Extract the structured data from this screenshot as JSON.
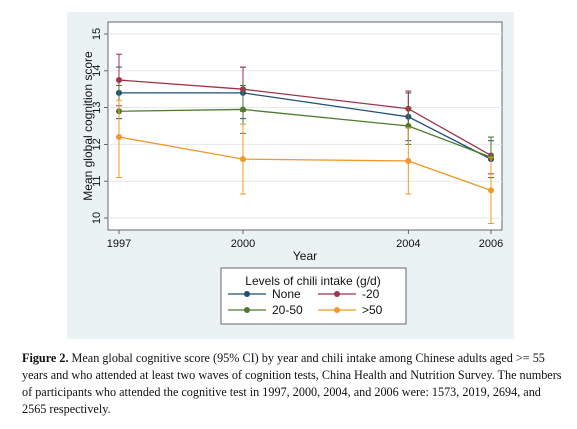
{
  "chart_data": {
    "type": "line",
    "xlabel": "Year",
    "ylabel": "Mean global cognition score",
    "x": [
      1997,
      2000,
      2004,
      2006
    ],
    "ylim": [
      10,
      15
    ],
    "yticks": [
      "10",
      "11",
      "12",
      "13",
      "14",
      "15"
    ],
    "xticks": [
      "1997",
      "2000",
      "2004",
      "2006"
    ],
    "grid": true,
    "legend": {
      "title": "Levels of chili intake (g/d)",
      "placement": "bottom"
    },
    "series": [
      {
        "name": "None",
        "color": "#1f4e79",
        "values": [
          13.4,
          13.4,
          12.75,
          11.6
        ],
        "ci_low": [
          12.7,
          12.7,
          12.1,
          11.1
        ],
        "ci_high": [
          14.1,
          14.1,
          13.4,
          12.1
        ]
      },
      {
        "name": "-20",
        "color": "#a0334a",
        "values": [
          13.75,
          13.5,
          12.97,
          11.7
        ],
        "ci_low": [
          13.05,
          12.9,
          12.5,
          11.2
        ],
        "ci_high": [
          14.45,
          14.1,
          13.45,
          12.2
        ]
      },
      {
        "name": "20-50",
        "color": "#4e7a2e",
        "values": [
          12.9,
          12.95,
          12.5,
          11.65
        ],
        "ci_low": [
          12.2,
          12.3,
          12.0,
          11.1
        ],
        "ci_high": [
          13.6,
          13.6,
          13.0,
          12.2
        ]
      },
      {
        "name": ">50",
        "color": "#f0982a",
        "values": [
          12.2,
          11.6,
          11.55,
          10.75
        ],
        "ci_low": [
          11.1,
          10.65,
          10.65,
          9.85
        ],
        "ci_high": [
          13.2,
          12.55,
          12.45,
          11.65
        ]
      }
    ]
  },
  "caption": {
    "label": "Figure 2.",
    "text": " Mean global cognitive score (95% CI) by year and chili intake among Chinese adults aged >= 55 years and who attended at least two waves of cognition tests, China Health and Nutrition Survey. The numbers of participants who attended the cognitive test in 1997, 2000, 2004, and 2006 were: 1573, 2019, 2694, and 2565 respectively."
  }
}
